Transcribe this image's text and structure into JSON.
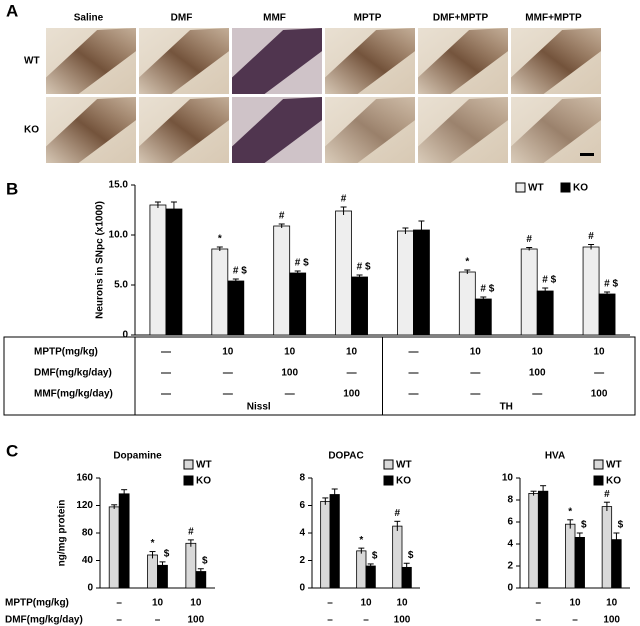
{
  "panels": {
    "a": "A",
    "b": "B",
    "c": "C"
  },
  "panel_a": {
    "columns": [
      "Saline",
      "DMF",
      "MMF",
      "MPTP",
      "DMF+MPTP",
      "MMF+MPTP"
    ],
    "rows": [
      "WT",
      "KO"
    ]
  },
  "chart_data": [
    {
      "type": "bar",
      "y_label": "Neurons in SNpc (x1000)",
      "categories": [
        null,
        null,
        null,
        null,
        null,
        null,
        null,
        null
      ],
      "series": [
        {
          "name": "WT",
          "color": "#eeeeee",
          "values": [
            13.0,
            8.6,
            10.9,
            12.4,
            10.4,
            6.3,
            8.6,
            8.8
          ],
          "errors": [
            0.3,
            0.2,
            0.2,
            0.4,
            0.3,
            0.2,
            0.15,
            0.25
          ],
          "annotations": [
            null,
            "*",
            "#",
            "#",
            null,
            "*",
            "#",
            "#"
          ]
        },
        {
          "name": "KO",
          "color": "#000000",
          "values": [
            12.6,
            5.4,
            6.2,
            5.8,
            10.5,
            3.6,
            4.4,
            4.1
          ],
          "errors": [
            0.7,
            0.2,
            0.2,
            0.2,
            0.9,
            0.2,
            0.3,
            0.2
          ],
          "annotations": [
            null,
            "# $",
            "# $",
            "# $",
            null,
            "# $",
            "# $",
            "# $"
          ]
        }
      ],
      "ylim": [
        0,
        15
      ],
      "yticks": [
        0,
        {
          "value": 5,
          "label": "5.0"
        },
        {
          "value": 10,
          "label": "10.0"
        },
        {
          "value": 15,
          "label": "15.0"
        }
      ],
      "legend": "upper right",
      "table_row_labels": [
        "MPTP(mg/kg)",
        "DMF(mg/kg/day)",
        "MMF(mg/kg/day)"
      ],
      "table": [
        [
          "—",
          "10",
          "10",
          "10",
          "—",
          "10",
          "10",
          "10"
        ],
        [
          "—",
          "—",
          "100",
          "—",
          "—",
          "—",
          "100",
          "—"
        ],
        [
          "—",
          "—",
          "—",
          "100",
          "—",
          "—",
          "—",
          "100"
        ]
      ],
      "table_groups": [
        "Nissl",
        "TH"
      ]
    },
    {
      "type": "bar",
      "title": "Dopamine",
      "y_label": "ng/mg protein",
      "categories": [
        null,
        null,
        null
      ],
      "series": [
        {
          "name": "WT",
          "color": "#d9d9d9",
          "values": [
            118,
            48,
            65
          ],
          "errors": [
            3,
            5,
            5
          ],
          "annotations": [
            null,
            "*",
            "#"
          ]
        },
        {
          "name": "KO",
          "color": "#000000",
          "values": [
            137,
            33,
            24
          ],
          "errors": [
            6,
            5,
            4
          ],
          "annotations": [
            null,
            "$",
            "$"
          ]
        }
      ],
      "ylim": [
        0,
        160
      ],
      "yticks": [
        0,
        40,
        80,
        120,
        160
      ],
      "legend": "upper right",
      "table_row_labels": [
        "MPTP(mg/kg)",
        "DMF(mg/kg/day)"
      ],
      "table": [
        [
          "–",
          "10",
          "10"
        ],
        [
          "–",
          "–",
          "100"
        ]
      ]
    },
    {
      "type": "bar",
      "title": "DOPAC",
      "categories": [
        null,
        null,
        null
      ],
      "series": [
        {
          "name": "WT",
          "color": "#d9d9d9",
          "values": [
            6.3,
            2.7,
            4.5
          ],
          "errors": [
            0.25,
            0.2,
            0.35
          ],
          "annotations": [
            null,
            "*",
            "#"
          ]
        },
        {
          "name": "KO",
          "color": "#000000",
          "values": [
            6.8,
            1.6,
            1.5
          ],
          "errors": [
            0.4,
            0.15,
            0.3
          ],
          "annotations": [
            null,
            "$",
            "$"
          ]
        }
      ],
      "ylim": [
        0,
        8
      ],
      "yticks": [
        0,
        2,
        4,
        6,
        8
      ],
      "legend": "upper right",
      "table": [
        [
          "–",
          "10",
          "10"
        ],
        [
          "–",
          "–",
          "100"
        ]
      ]
    },
    {
      "type": "bar",
      "title": "HVA",
      "categories": [
        null,
        null,
        null
      ],
      "series": [
        {
          "name": "WT",
          "color": "#d9d9d9",
          "values": [
            8.6,
            5.8,
            7.4
          ],
          "errors": [
            0.2,
            0.4,
            0.4
          ],
          "annotations": [
            null,
            "*",
            "#"
          ]
        },
        {
          "name": "KO",
          "color": "#000000",
          "values": [
            8.8,
            4.6,
            4.4
          ],
          "errors": [
            0.5,
            0.4,
            0.6
          ],
          "annotations": [
            null,
            "$",
            "$"
          ]
        }
      ],
      "ylim": [
        0,
        10
      ],
      "yticks": [
        0,
        2,
        4,
        6,
        8,
        10
      ],
      "legend": "upper right",
      "table": [
        [
          "–",
          "10",
          "10"
        ],
        [
          "–",
          "–",
          "100"
        ]
      ]
    }
  ]
}
